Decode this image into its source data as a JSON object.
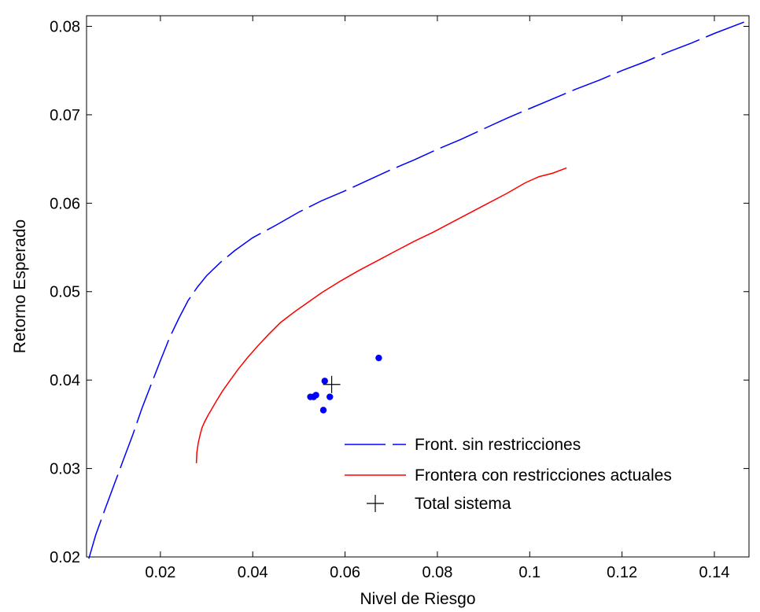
{
  "chart_data": {
    "type": "line",
    "title": "",
    "xlabel": "Nivel de Riesgo",
    "ylabel": "Retorno Esperado",
    "xlim": [
      0.004,
      0.1475
    ],
    "ylim": [
      0.02,
      0.0812
    ],
    "xticks": [
      0.02,
      0.04,
      0.06,
      0.08,
      0.1,
      0.12,
      0.14
    ],
    "xtick_labels": [
      "0.02",
      "0.04",
      "0.06",
      "0.08",
      "0.1",
      "0.12",
      "0.14"
    ],
    "yticks": [
      0.02,
      0.03,
      0.04,
      0.05,
      0.06,
      0.07,
      0.08
    ],
    "ytick_labels": [
      "0.02",
      "0.03",
      "0.04",
      "0.05",
      "0.06",
      "0.07",
      "0.08"
    ],
    "grid": false,
    "legend_position": "bottom-right",
    "series": [
      {
        "name": "Front. sin restricciones",
        "style": "dashed",
        "color": "#0000ff",
        "x": [
          0.0045,
          0.006,
          0.008,
          0.01,
          0.012,
          0.014,
          0.016,
          0.018,
          0.02,
          0.022,
          0.024,
          0.026,
          0.028,
          0.03,
          0.033,
          0.036,
          0.04,
          0.045,
          0.05,
          0.055,
          0.06,
          0.065,
          0.07,
          0.075,
          0.08,
          0.085,
          0.09,
          0.095,
          0.1,
          0.105,
          0.11,
          0.115,
          0.12,
          0.125,
          0.13,
          0.135,
          0.14,
          0.1465
        ],
        "y": [
          0.0198,
          0.0225,
          0.0254,
          0.0282,
          0.031,
          0.0338,
          0.0368,
          0.0395,
          0.0422,
          0.0448,
          0.047,
          0.049,
          0.0505,
          0.0518,
          0.0533,
          0.0546,
          0.0561,
          0.0575,
          0.059,
          0.0603,
          0.0614,
          0.0626,
          0.0638,
          0.0649,
          0.0661,
          0.0672,
          0.0684,
          0.0696,
          0.0707,
          0.0718,
          0.0729,
          0.0739,
          0.075,
          0.076,
          0.0771,
          0.0781,
          0.0792,
          0.0805
        ]
      },
      {
        "name": "Frontera con restricciones actuales",
        "style": "solid",
        "color": "#ff0000",
        "x": [
          0.0278,
          0.0279,
          0.0282,
          0.0286,
          0.029,
          0.0296,
          0.0303,
          0.0312,
          0.0322,
          0.0335,
          0.035,
          0.0368,
          0.0388,
          0.041,
          0.0435,
          0.046,
          0.049,
          0.052,
          0.055,
          0.059,
          0.063,
          0.067,
          0.071,
          0.075,
          0.079,
          0.083,
          0.087,
          0.091,
          0.095,
          0.099,
          0.102,
          0.105,
          0.108
        ],
        "y": [
          0.0306,
          0.0318,
          0.0329,
          0.0338,
          0.0346,
          0.0353,
          0.036,
          0.0368,
          0.0377,
          0.0388,
          0.0399,
          0.0412,
          0.0425,
          0.0438,
          0.0452,
          0.0465,
          0.0477,
          0.0488,
          0.0499,
          0.0512,
          0.0524,
          0.0535,
          0.0546,
          0.0557,
          0.0567,
          0.0578,
          0.0589,
          0.06,
          0.0611,
          0.0623,
          0.063,
          0.0634,
          0.064
        ]
      },
      {
        "name": "Total sistema",
        "style": "marker-plus",
        "color": "#000000",
        "x": [
          0.0571
        ],
        "y": [
          0.0395
        ]
      },
      {
        "name": "",
        "style": "marker-dot",
        "color": "#0000ff",
        "x": [
          0.0525,
          0.0532,
          0.0537,
          0.0553,
          0.0556,
          0.0567,
          0.0673
        ],
        "y": [
          0.0381,
          0.0381,
          0.0383,
          0.0366,
          0.0399,
          0.0381,
          0.0425
        ]
      }
    ]
  }
}
